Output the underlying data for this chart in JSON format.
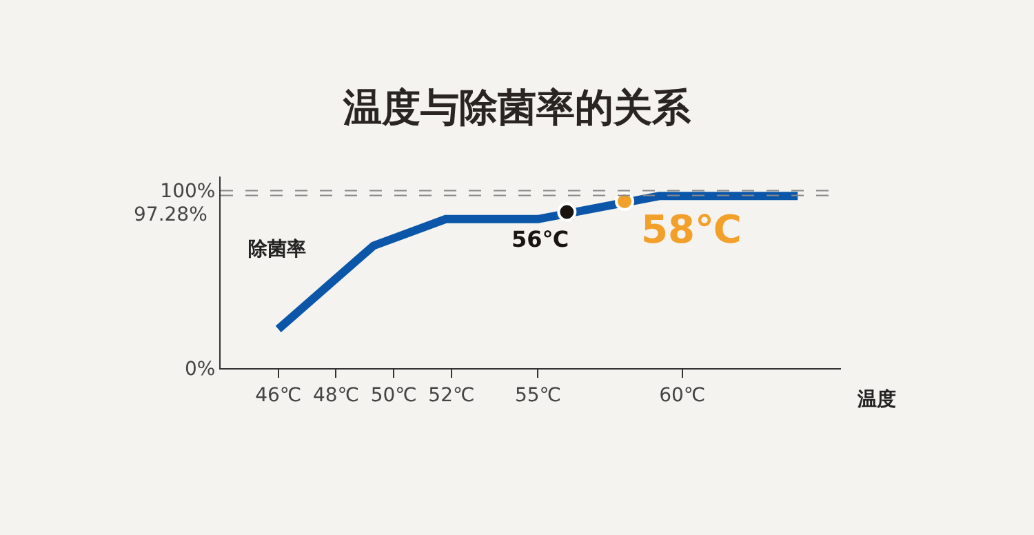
{
  "chart_data": {
    "type": "line",
    "title": "温度与除菌率的关系",
    "xlabel": "温度",
    "ylabel": "除菌率",
    "x": [
      46,
      49.3,
      51.8,
      55,
      59.2,
      64
    ],
    "xlim": [
      44,
      65.5
    ],
    "xticks": [
      {
        "value": 46,
        "label": "46℃"
      },
      {
        "value": 48,
        "label": "48℃"
      },
      {
        "value": 50,
        "label": "50℃"
      },
      {
        "value": 52,
        "label": "52℃"
      },
      {
        "value": 55,
        "label": "55℃"
      },
      {
        "value": 60,
        "label": "60℃"
      }
    ],
    "ylim": [
      0,
      108
    ],
    "yticks": [
      {
        "value": 0,
        "label": "0%"
      },
      {
        "value": 100,
        "label": "100%"
      }
    ],
    "series": [
      {
        "color": "#0b56a8",
        "values": [
          22,
          69,
          84,
          84,
          97,
          97
        ]
      },
      {
        "type": "scatter",
        "x": [
          56,
          58
        ],
        "values": [
          88,
          94
        ],
        "colors": [
          "#1a1410",
          "#f2a02a"
        ]
      }
    ],
    "annotations": [
      {
        "text": "56℃",
        "x": 56,
        "y": 88
      },
      {
        "text": "58℃",
        "x": 58,
        "y": 94
      }
    ],
    "ref_lines": [
      {
        "axis": "y",
        "value": 100,
        "label": null,
        "color": "#888888",
        "line_style": "dashed"
      },
      {
        "axis": "y",
        "value": 97.28,
        "label": "97.28%",
        "color": "#888888",
        "line_style": "dashed"
      }
    ],
    "grid": false,
    "line_style": "solid"
  }
}
